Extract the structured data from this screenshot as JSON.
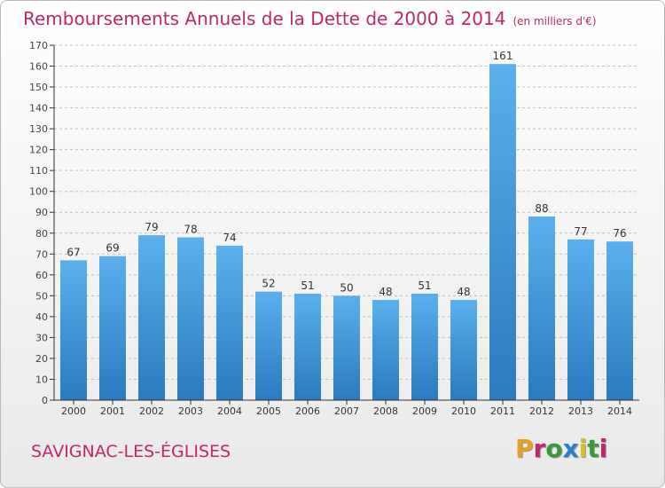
{
  "title": "Remboursements Annuels de la Dette de 2000 à 2014",
  "unit": "(en milliers d'€)",
  "town": "SAVIGNAC-LES-ÉGLISES",
  "logo": {
    "text": "Proxiti",
    "colors": [
      "#e8a020",
      "#c0266a",
      "#3a9a3a",
      "#2a7fc9",
      "#d8c020",
      "#3a9a3a",
      "#c0266a"
    ]
  },
  "colors": {
    "bar_top": "#5ab0ec",
    "bar_bottom": "#2a7abf",
    "title": "#c0266a",
    "axis": "#333333",
    "grid": "#bfbfbf"
  },
  "chart_data": {
    "type": "bar",
    "categories": [
      "2000",
      "2001",
      "2002",
      "2003",
      "2004",
      "2005",
      "2006",
      "2007",
      "2008",
      "2009",
      "2010",
      "2011",
      "2012",
      "2013",
      "2014"
    ],
    "values": [
      67,
      69,
      79,
      78,
      74,
      52,
      51,
      50,
      48,
      51,
      48,
      161,
      88,
      77,
      76
    ],
    "ylim": [
      0,
      170
    ],
    "yticks": [
      0,
      10,
      20,
      30,
      40,
      50,
      60,
      70,
      80,
      90,
      100,
      110,
      120,
      130,
      140,
      150,
      160,
      170
    ],
    "grid": true
  }
}
